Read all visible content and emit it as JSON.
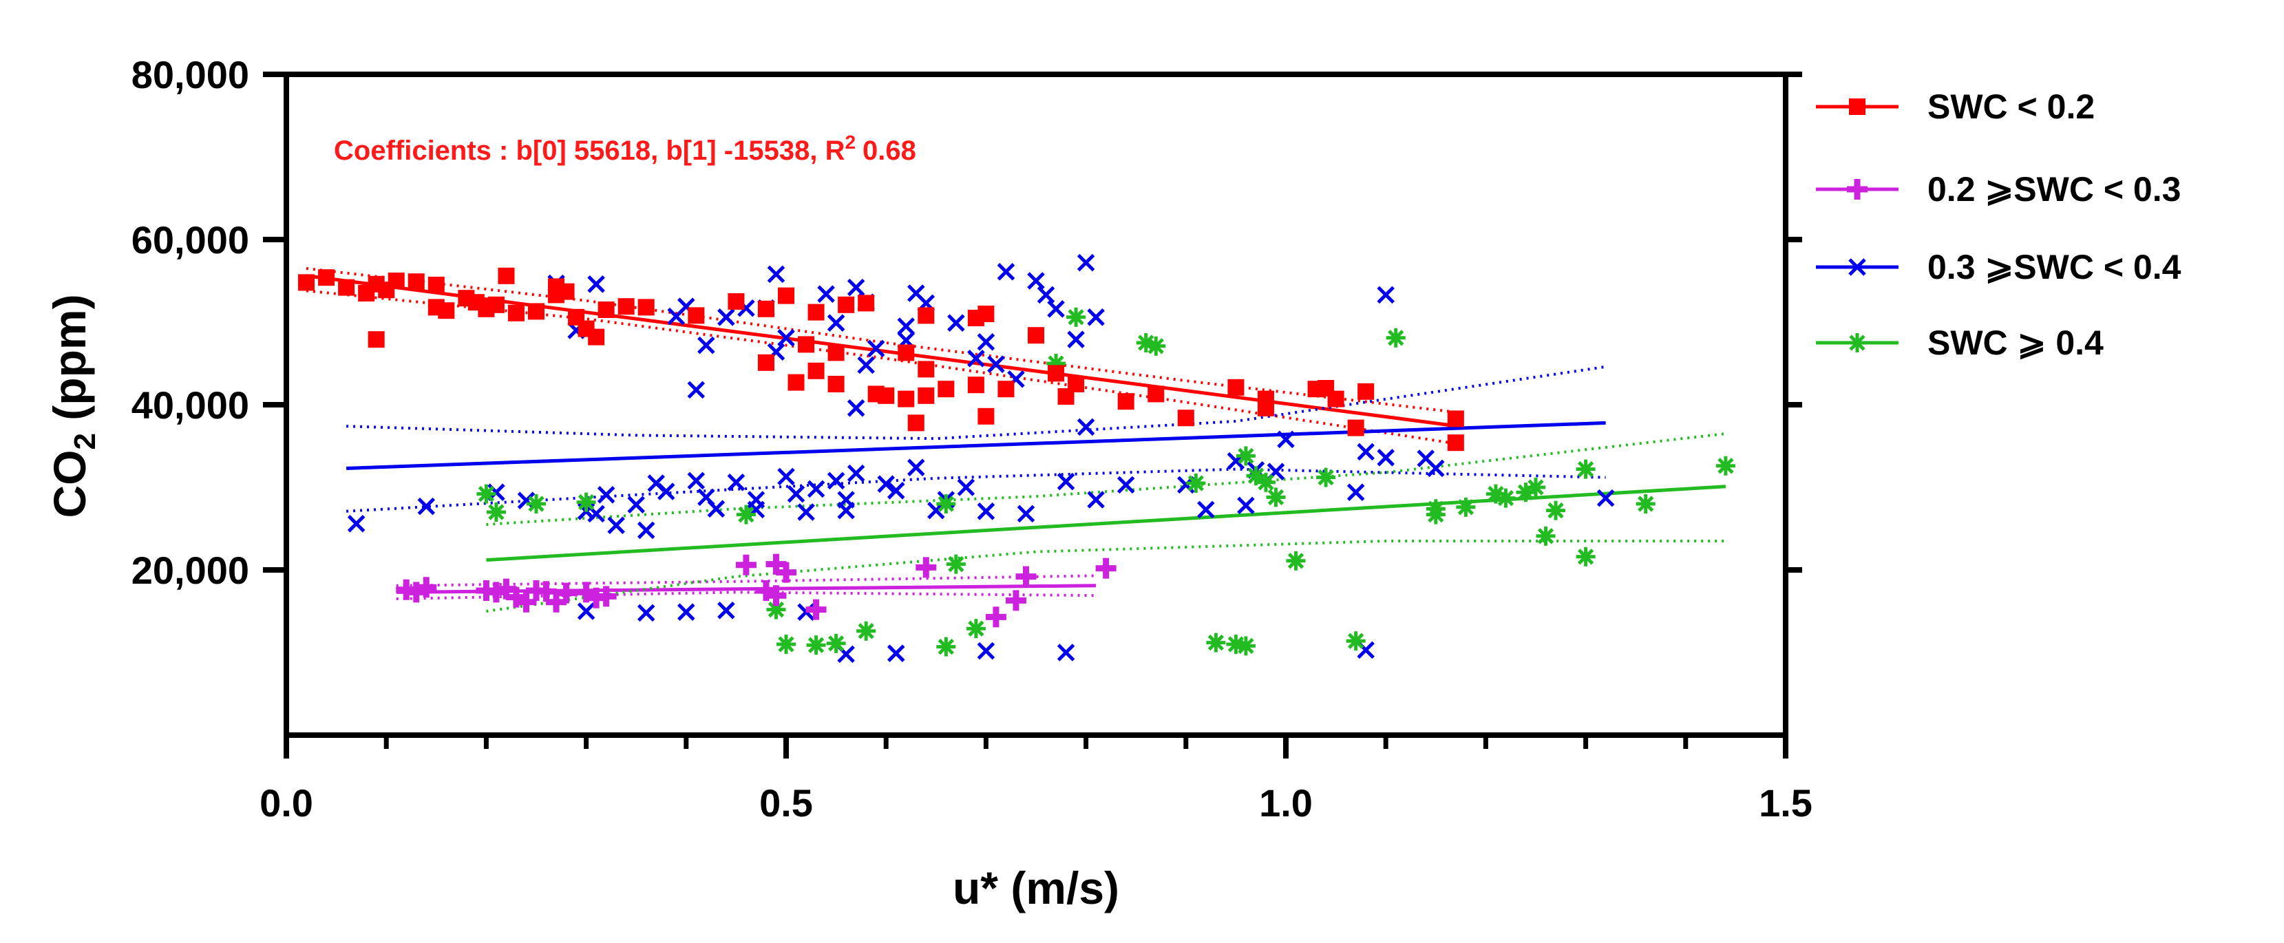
{
  "chart_data": {
    "type": "scatter",
    "title": "",
    "xlabel": "u* (m/s)",
    "ylabel": {
      "main": "CO",
      "sub": "2",
      "rest": " (ppm)"
    },
    "xlim": [
      0,
      1.5
    ],
    "ylim": [
      0,
      80000
    ],
    "x_ticks": [
      {
        "value": 0,
        "label": "0.0"
      },
      {
        "value": 0.5,
        "label": "0.5"
      },
      {
        "value": 1.0,
        "label": "1.0"
      },
      {
        "value": 1.5,
        "label": "1.5"
      }
    ],
    "y_ticks": [
      {
        "value": 20000,
        "label": "20,000"
      },
      {
        "value": 40000,
        "label": "40,000"
      },
      {
        "value": 60000,
        "label": "60,000"
      },
      {
        "value": 80000,
        "label": "80,000"
      }
    ],
    "grid": false,
    "legend_position": "right",
    "annotation": {
      "prefix": "Coefficients : b[0] 55618, b[1] -15538, R",
      "sup": "2",
      "suffix": "0.68"
    },
    "series": [
      {
        "name": "SWC < 0.2",
        "color": "#ff0000",
        "marker": "square",
        "fit": {
          "x": [
            0.02,
            1.17
          ],
          "y": [
            55618,
            37436
          ]
        },
        "ci_upper": [
          [
            0.02,
            56500
          ],
          [
            0.3,
            52600
          ],
          [
            0.6,
            47500
          ],
          [
            0.9,
            42900
          ],
          [
            1.17,
            39100
          ]
        ],
        "ci_lower": [
          [
            0.02,
            53800
          ],
          [
            0.3,
            50400
          ],
          [
            0.6,
            45600
          ],
          [
            0.9,
            40300
          ],
          [
            1.17,
            35300
          ]
        ],
        "points": [
          [
            0.02,
            54800
          ],
          [
            0.04,
            55400
          ],
          [
            0.06,
            54200
          ],
          [
            0.08,
            53500
          ],
          [
            0.09,
            54600
          ],
          [
            0.09,
            47900
          ],
          [
            0.1,
            53900
          ],
          [
            0.11,
            55000
          ],
          [
            0.13,
            54900
          ],
          [
            0.15,
            54500
          ],
          [
            0.15,
            51800
          ],
          [
            0.16,
            51400
          ],
          [
            0.18,
            52900
          ],
          [
            0.19,
            52400
          ],
          [
            0.2,
            51600
          ],
          [
            0.21,
            52100
          ],
          [
            0.22,
            55600
          ],
          [
            0.23,
            51100
          ],
          [
            0.25,
            51300
          ],
          [
            0.27,
            53300
          ],
          [
            0.27,
            54300
          ],
          [
            0.28,
            53700
          ],
          [
            0.29,
            50600
          ],
          [
            0.3,
            49200
          ],
          [
            0.31,
            48200
          ],
          [
            0.32,
            51500
          ],
          [
            0.34,
            51900
          ],
          [
            0.36,
            51800
          ],
          [
            0.41,
            50800
          ],
          [
            0.45,
            52500
          ],
          [
            0.48,
            51600
          ],
          [
            0.48,
            45100
          ],
          [
            0.5,
            53200
          ],
          [
            0.51,
            42700
          ],
          [
            0.52,
            47300
          ],
          [
            0.53,
            44100
          ],
          [
            0.53,
            51200
          ],
          [
            0.55,
            46300
          ],
          [
            0.55,
            42500
          ],
          [
            0.56,
            52100
          ],
          [
            0.58,
            52300
          ],
          [
            0.59,
            41300
          ],
          [
            0.6,
            41100
          ],
          [
            0.62,
            46300
          ],
          [
            0.62,
            40700
          ],
          [
            0.63,
            37800
          ],
          [
            0.64,
            41100
          ],
          [
            0.64,
            44300
          ],
          [
            0.64,
            50800
          ],
          [
            0.66,
            41900
          ],
          [
            0.69,
            42400
          ],
          [
            0.69,
            50500
          ],
          [
            0.7,
            38600
          ],
          [
            0.7,
            51000
          ],
          [
            0.72,
            41900
          ],
          [
            0.75,
            48400
          ],
          [
            0.77,
            43800
          ],
          [
            0.78,
            41000
          ],
          [
            0.79,
            42500
          ],
          [
            0.84,
            40400
          ],
          [
            0.87,
            41300
          ],
          [
            0.9,
            38400
          ],
          [
            0.95,
            42100
          ],
          [
            0.98,
            40700
          ],
          [
            0.98,
            39600
          ],
          [
            1.03,
            41900
          ],
          [
            1.04,
            42000
          ],
          [
            1.05,
            40700
          ],
          [
            1.07,
            37200
          ],
          [
            1.08,
            41600
          ],
          [
            1.17,
            35400
          ],
          [
            1.17,
            38300
          ]
        ]
      },
      {
        "name": "0.2 ⩾SWC < 0.3",
        "color": "#cc22dd",
        "marker": "plus",
        "fit": {
          "x": [
            0.11,
            0.81
          ],
          "y": [
            17300,
            18100
          ]
        },
        "ci_upper": [
          [
            0.11,
            18100
          ],
          [
            0.45,
            18600
          ],
          [
            0.81,
            19300
          ]
        ],
        "ci_lower": [
          [
            0.11,
            16500
          ],
          [
            0.45,
            17300
          ],
          [
            0.81,
            16900
          ]
        ],
        "points": [
          [
            0.12,
            17600
          ],
          [
            0.13,
            17300
          ],
          [
            0.14,
            17900
          ],
          [
            0.2,
            17500
          ],
          [
            0.21,
            17300
          ],
          [
            0.22,
            17700
          ],
          [
            0.23,
            16700
          ],
          [
            0.24,
            16100
          ],
          [
            0.25,
            17500
          ],
          [
            0.26,
            17400
          ],
          [
            0.27,
            16100
          ],
          [
            0.28,
            17200
          ],
          [
            0.3,
            17300
          ],
          [
            0.31,
            16600
          ],
          [
            0.32,
            16800
          ],
          [
            0.46,
            20600
          ],
          [
            0.48,
            17500
          ],
          [
            0.49,
            20700
          ],
          [
            0.49,
            16900
          ],
          [
            0.5,
            19700
          ],
          [
            0.53,
            15200
          ],
          [
            0.64,
            20300
          ],
          [
            0.71,
            14300
          ],
          [
            0.73,
            16300
          ],
          [
            0.74,
            19200
          ],
          [
            0.82,
            20200
          ]
        ]
      },
      {
        "name": "0.3 ⩾SWC < 0.4",
        "color": "#0000ee",
        "marker": "x",
        "fit": {
          "x": [
            0.06,
            1.32
          ],
          "y": [
            32300,
            37800
          ]
        },
        "ci_upper": [
          [
            0.06,
            37400
          ],
          [
            0.35,
            36300
          ],
          [
            0.65,
            35900
          ],
          [
            0.95,
            38000
          ],
          [
            1.32,
            44600
          ]
        ],
        "ci_lower": [
          [
            0.06,
            27100
          ],
          [
            0.35,
            29100
          ],
          [
            0.65,
            31100
          ],
          [
            0.95,
            32200
          ],
          [
            1.32,
            31200
          ]
        ],
        "points": [
          [
            0.07,
            25600
          ],
          [
            0.14,
            27700
          ],
          [
            0.21,
            29400
          ],
          [
            0.24,
            28400
          ],
          [
            0.27,
            54700
          ],
          [
            0.29,
            49000
          ],
          [
            0.3,
            27100
          ],
          [
            0.31,
            26800
          ],
          [
            0.31,
            54600
          ],
          [
            0.32,
            29100
          ],
          [
            0.33,
            25400
          ],
          [
            0.35,
            27900
          ],
          [
            0.36,
            24800
          ],
          [
            0.37,
            30500
          ],
          [
            0.38,
            29500
          ],
          [
            0.39,
            50700
          ],
          [
            0.4,
            51900
          ],
          [
            0.41,
            30800
          ],
          [
            0.41,
            41800
          ],
          [
            0.42,
            47200
          ],
          [
            0.42,
            28800
          ],
          [
            0.43,
            27400
          ],
          [
            0.44,
            50600
          ],
          [
            0.45,
            30600
          ],
          [
            0.46,
            51700
          ],
          [
            0.47,
            27300
          ],
          [
            0.47,
            28500
          ],
          [
            0.48,
            51700
          ],
          [
            0.49,
            55800
          ],
          [
            0.49,
            46400
          ],
          [
            0.5,
            31300
          ],
          [
            0.5,
            48100
          ],
          [
            0.51,
            29200
          ],
          [
            0.52,
            27000
          ],
          [
            0.53,
            29800
          ],
          [
            0.54,
            53400
          ],
          [
            0.55,
            49900
          ],
          [
            0.55,
            30800
          ],
          [
            0.56,
            28500
          ],
          [
            0.56,
            27200
          ],
          [
            0.57,
            31700
          ],
          [
            0.57,
            54200
          ],
          [
            0.57,
            39600
          ],
          [
            0.58,
            44800
          ],
          [
            0.58,
            52400
          ],
          [
            0.59,
            46800
          ],
          [
            0.6,
            30400
          ],
          [
            0.61,
            29600
          ],
          [
            0.62,
            49500
          ],
          [
            0.62,
            47800
          ],
          [
            0.63,
            53500
          ],
          [
            0.63,
            32400
          ],
          [
            0.64,
            52300
          ],
          [
            0.65,
            27200
          ],
          [
            0.66,
            28500
          ],
          [
            0.67,
            49900
          ],
          [
            0.68,
            30000
          ],
          [
            0.69,
            45600
          ],
          [
            0.7,
            47600
          ],
          [
            0.7,
            27100
          ],
          [
            0.71,
            44900
          ],
          [
            0.72,
            56100
          ],
          [
            0.73,
            43100
          ],
          [
            0.74,
            26800
          ],
          [
            0.75,
            55000
          ],
          [
            0.76,
            53300
          ],
          [
            0.77,
            51600
          ],
          [
            0.78,
            30700
          ],
          [
            0.79,
            47900
          ],
          [
            0.8,
            57200
          ],
          [
            0.8,
            37300
          ],
          [
            0.81,
            28500
          ],
          [
            0.81,
            50600
          ],
          [
            0.84,
            30300
          ],
          [
            0.9,
            30300
          ],
          [
            0.92,
            27300
          ],
          [
            0.95,
            33200
          ],
          [
            0.96,
            27800
          ],
          [
            0.97,
            32100
          ],
          [
            0.99,
            31900
          ],
          [
            1.0,
            35800
          ],
          [
            1.07,
            29400
          ],
          [
            1.08,
            34300
          ],
          [
            1.1,
            33600
          ],
          [
            1.1,
            53300
          ],
          [
            1.14,
            33500
          ],
          [
            1.15,
            32300
          ],
          [
            1.32,
            28700
          ],
          [
            0.52,
            14900
          ],
          [
            0.36,
            14800
          ],
          [
            0.4,
            14900
          ],
          [
            0.56,
            9800
          ],
          [
            0.61,
            9900
          ],
          [
            0.7,
            10200
          ],
          [
            0.78,
            10000
          ],
          [
            1.08,
            10300
          ],
          [
            0.3,
            15000
          ],
          [
            0.44,
            15100
          ]
        ]
      },
      {
        "name": "SWC ⩾ 0.4",
        "color": "#22bb22",
        "marker": "asterisk",
        "fit": {
          "x": [
            0.2,
            1.44
          ],
          "y": [
            21200,
            30100
          ]
        },
        "ci_upper": [
          [
            0.2,
            25500
          ],
          [
            0.45,
            27400
          ],
          [
            0.75,
            28900
          ],
          [
            1.1,
            31800
          ],
          [
            1.44,
            36500
          ]
        ],
        "ci_lower": [
          [
            0.2,
            15000
          ],
          [
            0.45,
            19200
          ],
          [
            0.75,
            22200
          ],
          [
            1.1,
            23500
          ],
          [
            1.44,
            23500
          ]
        ],
        "points": [
          [
            0.2,
            29200
          ],
          [
            0.21,
            27000
          ],
          [
            0.25,
            28000
          ],
          [
            0.3,
            28200
          ],
          [
            0.46,
            26700
          ],
          [
            0.49,
            15200
          ],
          [
            0.5,
            11000
          ],
          [
            0.53,
            10900
          ],
          [
            0.55,
            11100
          ],
          [
            0.58,
            12600
          ],
          [
            0.66,
            10700
          ],
          [
            0.66,
            28000
          ],
          [
            0.67,
            20700
          ],
          [
            0.69,
            12900
          ],
          [
            0.77,
            45000
          ],
          [
            0.79,
            50600
          ],
          [
            0.86,
            47500
          ],
          [
            0.87,
            47100
          ],
          [
            0.91,
            30500
          ],
          [
            0.93,
            11200
          ],
          [
            0.95,
            11000
          ],
          [
            0.96,
            10800
          ],
          [
            0.96,
            33800
          ],
          [
            0.97,
            31400
          ],
          [
            0.98,
            30600
          ],
          [
            0.99,
            28800
          ],
          [
            1.01,
            21100
          ],
          [
            1.04,
            31200
          ],
          [
            1.07,
            11400
          ],
          [
            1.11,
            48100
          ],
          [
            1.15,
            26700
          ],
          [
            1.15,
            27400
          ],
          [
            1.18,
            27600
          ],
          [
            1.21,
            29200
          ],
          [
            1.22,
            28700
          ],
          [
            1.24,
            29400
          ],
          [
            1.25,
            30000
          ],
          [
            1.26,
            24100
          ],
          [
            1.27,
            27200
          ],
          [
            1.3,
            32200
          ],
          [
            1.3,
            21600
          ],
          [
            1.36,
            28000
          ],
          [
            1.44,
            32600
          ]
        ]
      }
    ]
  }
}
